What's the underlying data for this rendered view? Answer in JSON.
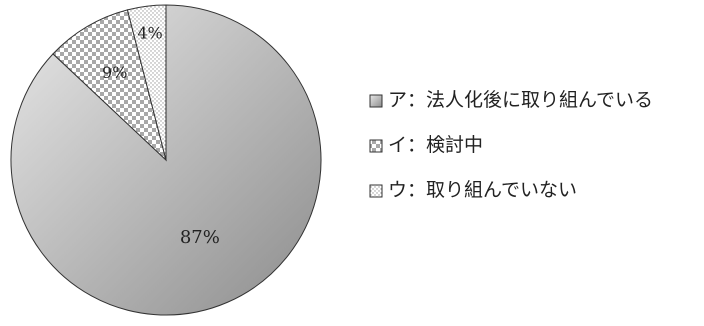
{
  "chart_data": {
    "type": "pie",
    "slices": [
      {
        "label": "ア：法人化後に取り組んでいる",
        "value": 87,
        "data_label": "87%",
        "fill": "gradient"
      },
      {
        "label": "イ：検討中",
        "value": 9,
        "data_label": "9%",
        "fill": "checker"
      },
      {
        "label": "ウ：取り組んでいない",
        "value": 4,
        "data_label": "4%",
        "fill": "dots"
      }
    ],
    "start_angle_deg": 0,
    "direction": "clockwise",
    "legend_position": "right",
    "colors": {
      "gradient_light": "#e8e8e8",
      "gradient_dark": "#8c8c8c",
      "checker": "#a8a8a8",
      "dots": "#9a9a9a",
      "outline": "#333333",
      "text": "#222222"
    }
  }
}
